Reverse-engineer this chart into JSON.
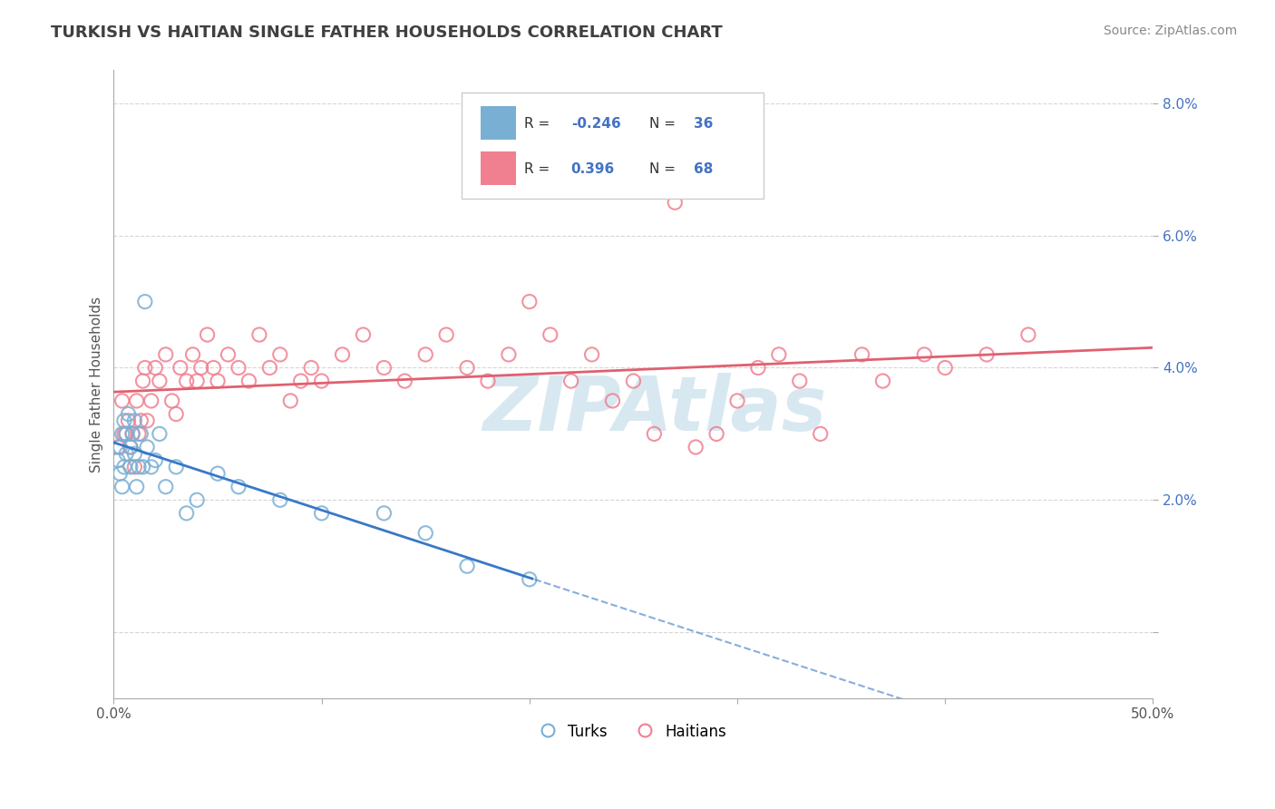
{
  "title": "TURKISH VS HAITIAN SINGLE FATHER HOUSEHOLDS CORRELATION CHART",
  "source": "Source: ZipAtlas.com",
  "ylabel": "Single Father Households",
  "xlim": [
    0.0,
    0.5
  ],
  "ylim": [
    -0.01,
    0.085
  ],
  "xticks": [
    0.0,
    0.1,
    0.2,
    0.3,
    0.4,
    0.5
  ],
  "xtick_labels": [
    "0.0%",
    "",
    "",
    "",
    "",
    "50.0%"
  ],
  "yticks": [
    0.0,
    0.02,
    0.04,
    0.06,
    0.08
  ],
  "ytick_labels": [
    "",
    "2.0%",
    "4.0%",
    "6.0%",
    "8.0%"
  ],
  "turks_color": "#7aafd4",
  "haitians_color": "#f08090",
  "turks_line_color": "#3878c8",
  "haitians_line_color": "#e06070",
  "turks_R": -0.246,
  "turks_N": 36,
  "haitians_R": 0.396,
  "haitians_N": 68,
  "background_color": "#ffffff",
  "grid_color": "#cccccc",
  "watermark_color": "#d8e8f0"
}
